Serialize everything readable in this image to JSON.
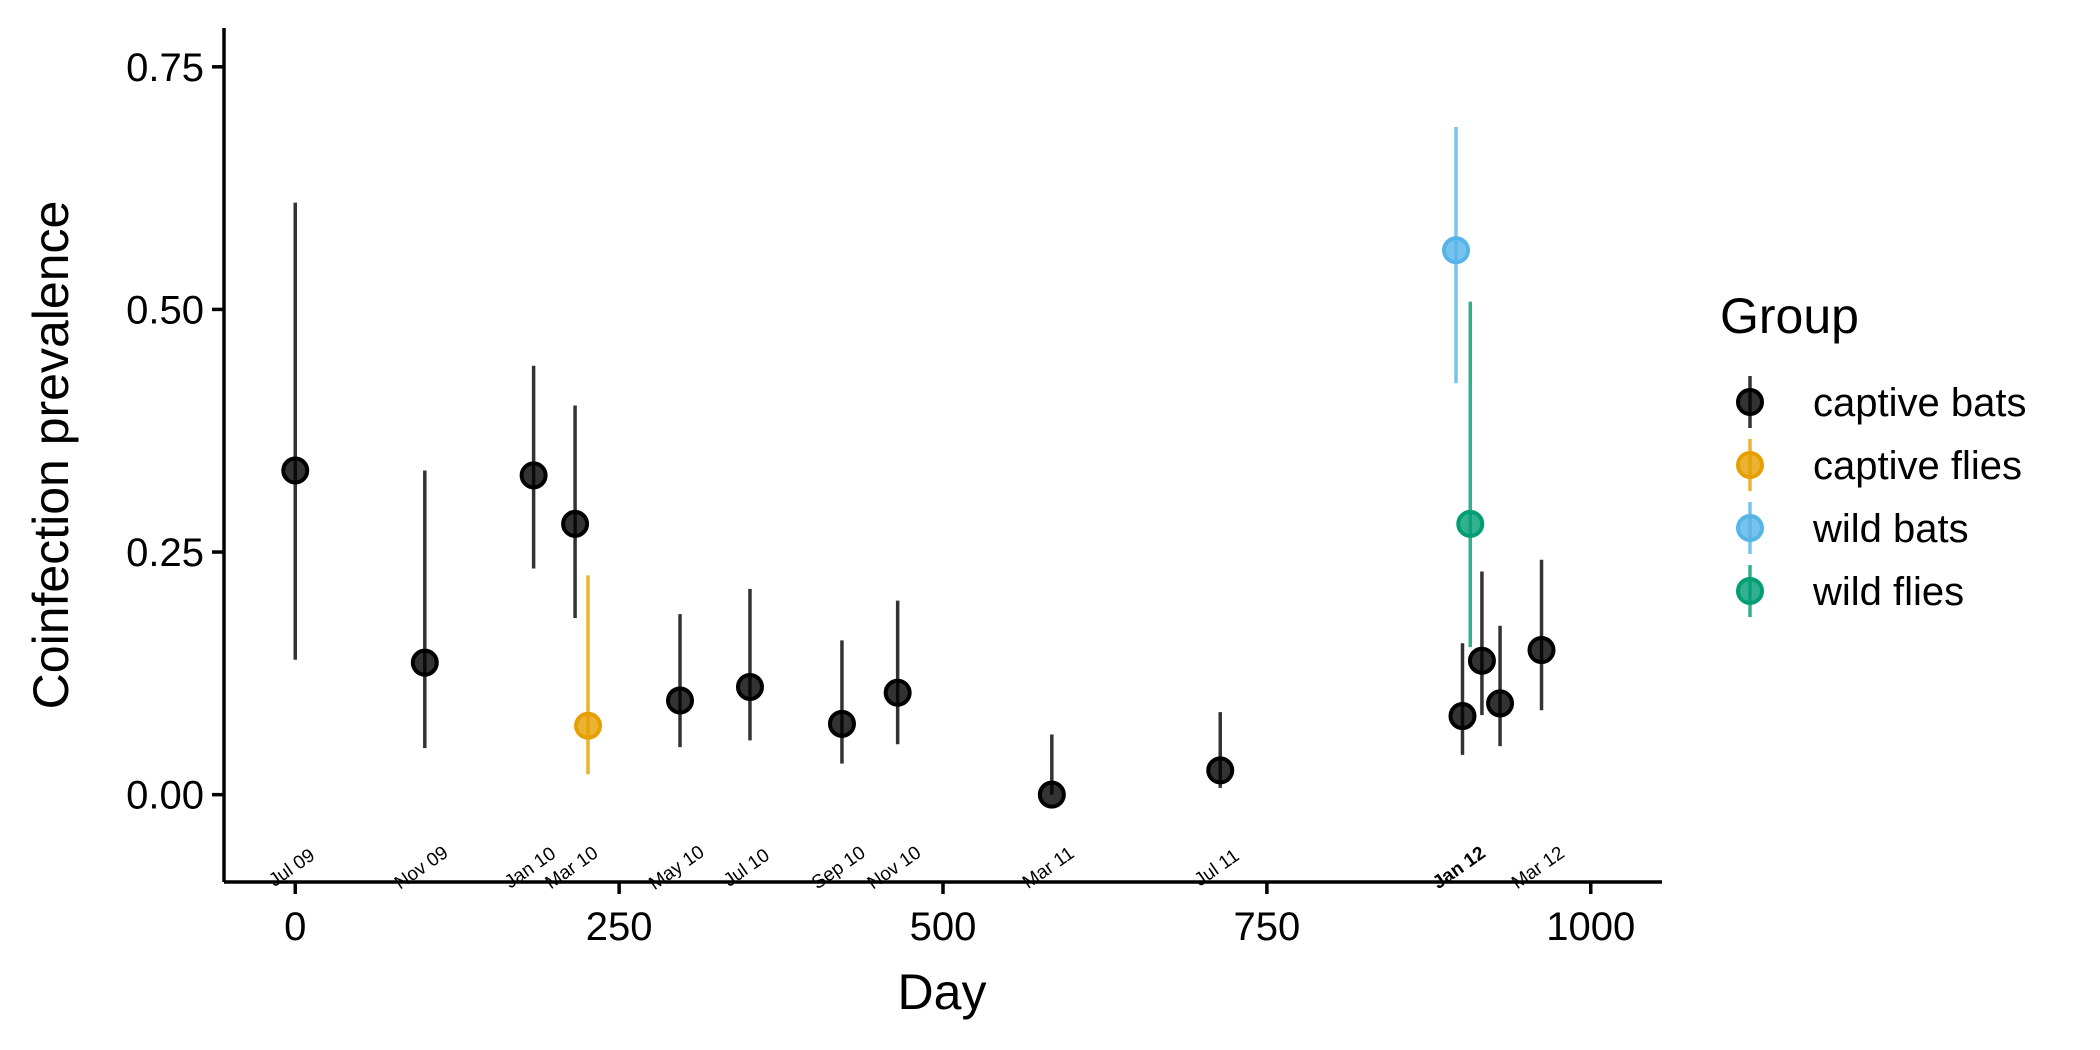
{
  "chart_data": {
    "type": "scatter",
    "xlabel": "Day",
    "ylabel": "Coinfection prevalence",
    "xlim": [
      -55,
      1055
    ],
    "ylim": [
      -0.09,
      0.79
    ],
    "x_ticks": [
      0,
      250,
      500,
      750,
      1000
    ],
    "y_ticks": [
      0.0,
      0.25,
      0.5,
      0.75
    ],
    "y_tick_labels": [
      "0.00",
      "0.25",
      "0.50",
      "0.75"
    ],
    "legend": {
      "title": "Group",
      "position": "right"
    },
    "series": [
      {
        "name": "captive bats",
        "color": "#000000",
        "points": [
          {
            "x": 0,
            "y": 0.334,
            "lo": 0.139,
            "hi": 0.61
          },
          {
            "x": 100,
            "y": 0.136,
            "lo": 0.048,
            "hi": 0.334
          },
          {
            "x": 184,
            "y": 0.329,
            "lo": 0.233,
            "hi": 0.442
          },
          {
            "x": 216,
            "y": 0.279,
            "lo": 0.182,
            "hi": 0.401
          },
          {
            "x": 297,
            "y": 0.097,
            "lo": 0.049,
            "hi": 0.186
          },
          {
            "x": 351,
            "y": 0.111,
            "lo": 0.056,
            "hi": 0.212
          },
          {
            "x": 422,
            "y": 0.073,
            "lo": 0.032,
            "hi": 0.159
          },
          {
            "x": 465,
            "y": 0.105,
            "lo": 0.052,
            "hi": 0.2
          },
          {
            "x": 584,
            "y": 0.0,
            "lo": 0.0,
            "hi": 0.062
          },
          {
            "x": 714,
            "y": 0.025,
            "lo": 0.007,
            "hi": 0.085
          },
          {
            "x": 901,
            "y": 0.081,
            "lo": 0.041,
            "hi": 0.156
          },
          {
            "x": 916,
            "y": 0.138,
            "lo": 0.082,
            "hi": 0.23
          },
          {
            "x": 930,
            "y": 0.094,
            "lo": 0.05,
            "hi": 0.174
          },
          {
            "x": 962,
            "y": 0.149,
            "lo": 0.087,
            "hi": 0.242
          }
        ]
      },
      {
        "name": "captive flies",
        "color": "#E69F00",
        "points": [
          {
            "x": 226,
            "y": 0.071,
            "lo": 0.021,
            "hi": 0.226
          }
        ]
      },
      {
        "name": "wild bats",
        "color": "#56B4E9",
        "points": [
          {
            "x": 896,
            "y": 0.561,
            "lo": 0.424,
            "hi": 0.688
          }
        ]
      },
      {
        "name": "wild flies",
        "color": "#009E73",
        "points": [
          {
            "x": 907,
            "y": 0.279,
            "lo": 0.152,
            "hi": 0.508
          }
        ]
      }
    ],
    "date_annotations": [
      {
        "x": 0,
        "label": "Jul 09",
        "bold": false
      },
      {
        "x": 100,
        "label": "Nov 09",
        "bold": false
      },
      {
        "x": 184,
        "label": "Jan 10",
        "bold": false
      },
      {
        "x": 216,
        "label": "Mar 10",
        "bold": false
      },
      {
        "x": 297,
        "label": "May 10",
        "bold": false
      },
      {
        "x": 351,
        "label": "Jul 10",
        "bold": false
      },
      {
        "x": 422,
        "label": "Sep 10",
        "bold": false
      },
      {
        "x": 465,
        "label": "Nov 10",
        "bold": false
      },
      {
        "x": 584,
        "label": "Mar 11",
        "bold": false
      },
      {
        "x": 714,
        "label": "Jul 11",
        "bold": false
      },
      {
        "x": 901,
        "label": "Jan 12",
        "bold": true
      },
      {
        "x": 962,
        "label": "Mar 12",
        "bold": false
      }
    ]
  }
}
